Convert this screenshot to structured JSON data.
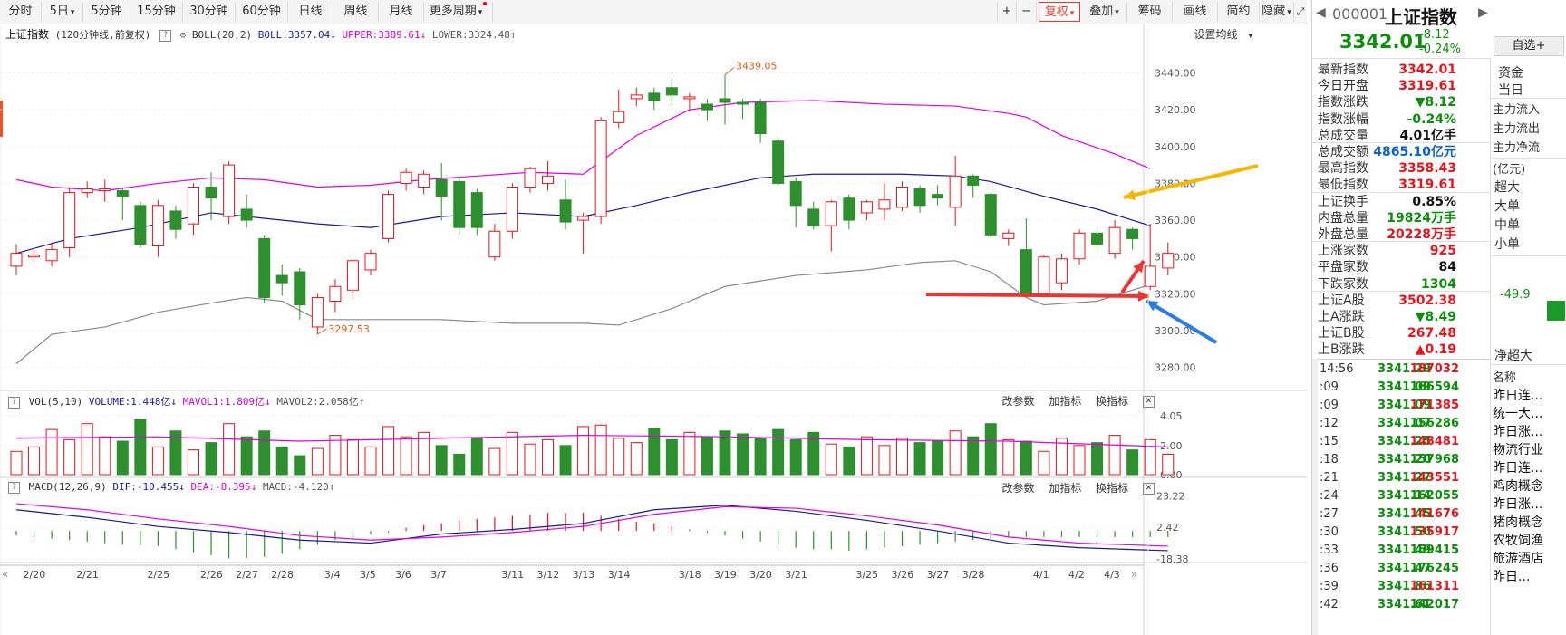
{
  "toolbar": {
    "periods": [
      "分时",
      "5日",
      "5分钟",
      "15分钟",
      "30分钟",
      "60分钟",
      "日线",
      "周线",
      "月线",
      "更多周期"
    ],
    "right_tools": [
      "+",
      "−",
      "复权",
      "叠加",
      "筹码",
      "画线",
      "简约",
      "隐藏"
    ]
  },
  "main": {
    "title": "上证指数",
    "subtitle": "(120分钟线,前复权)",
    "indicator": "BOLL(20,2)",
    "boll_label": "BOLL:3357.04",
    "upper_label": "UPPER:3389.61",
    "lower_label": "LOWER:3324.48",
    "settings": "设置均线",
    "high_mark": "3439.05",
    "low_mark": "3297.53",
    "yticks": [
      "3440.00",
      "3420.00",
      "3400.00",
      "3380.00",
      "3360.00",
      "3340.00",
      "3320.00",
      "3300.00",
      "3280.00"
    ]
  },
  "vol": {
    "indicator": "VOL(5,10)",
    "volume_label": "VOLUME:1.448亿",
    "mavol1_label": "MAVOL1:1.809亿",
    "mavol2_label": "MAVOL2:2.058亿",
    "yticks": [
      "4.05",
      "2.00",
      "0.00"
    ]
  },
  "macd": {
    "indicator": "MACD(12,26,9)",
    "dif_label": "DIF:-10.455",
    "dea_label": "DEA:-8.395",
    "macd_label": "MACD:-4.120",
    "yticks": [
      "23.22",
      "2.42",
      "-18.38"
    ]
  },
  "panel_tools": [
    "改参数",
    "加指标",
    "换指标"
  ],
  "xaxis": [
    "2/20",
    "2/21",
    "2/25",
    "2/26",
    "2/27",
    "2/28",
    "3/4",
    "3/5",
    "3/6",
    "3/7",
    "3/11",
    "3/12",
    "3/13",
    "3/14",
    "3/18",
    "3/19",
    "3/20",
    "3/21",
    "3/25",
    "3/26",
    "3/27",
    "3/28",
    "4/1",
    "4/2",
    "4/3"
  ],
  "chart_data": {
    "type": "candlestick",
    "ylim": [
      3270,
      3455
    ],
    "candles": [
      [
        3335,
        3342,
        3330,
        3347
      ],
      [
        3340,
        3341,
        3337,
        3344
      ],
      [
        3338,
        3344,
        3335,
        3348
      ],
      [
        3345,
        3375,
        3340,
        3378
      ],
      [
        3375,
        3377,
        3372,
        3381
      ],
      [
        3376,
        3377,
        3370,
        3382
      ],
      [
        3376,
        3373,
        3360,
        3377
      ],
      [
        3368,
        3347,
        3345,
        3370
      ],
      [
        3346,
        3368,
        3340,
        3371
      ],
      [
        3365,
        3355,
        3350,
        3368
      ],
      [
        3358,
        3378,
        3352,
        3380
      ],
      [
        3378,
        3372,
        3360,
        3386
      ],
      [
        3362,
        3390,
        3358,
        3392
      ],
      [
        3366,
        3360,
        3356,
        3374
      ],
      [
        3350,
        3318,
        3315,
        3352
      ],
      [
        3330,
        3326,
        3319,
        3336
      ],
      [
        3332,
        3314,
        3306,
        3334
      ],
      [
        3302,
        3318,
        3298,
        3320
      ],
      [
        3316,
        3324,
        3310,
        3328
      ],
      [
        3322,
        3338,
        3318,
        3339
      ],
      [
        3333,
        3342,
        3330,
        3344
      ],
      [
        3350,
        3374,
        3348,
        3376
      ],
      [
        3380,
        3386,
        3376,
        3388
      ],
      [
        3378,
        3385,
        3374,
        3387
      ],
      [
        3382,
        3373,
        3360,
        3391
      ],
      [
        3381,
        3356,
        3352,
        3383
      ],
      [
        3375,
        3356,
        3352,
        3377
      ],
      [
        3340,
        3354,
        3338,
        3358
      ],
      [
        3354,
        3378,
        3350,
        3380
      ],
      [
        3378,
        3388,
        3375,
        3389
      ],
      [
        3380,
        3384,
        3376,
        3392
      ],
      [
        3371,
        3359,
        3355,
        3382
      ],
      [
        3360,
        3362,
        3342,
        3364
      ],
      [
        3362,
        3414,
        3358,
        3416
      ],
      [
        3413,
        3419,
        3410,
        3431
      ],
      [
        3426,
        3428,
        3422,
        3432
      ],
      [
        3429,
        3425,
        3420,
        3432
      ],
      [
        3432,
        3428,
        3422,
        3437
      ],
      [
        3426,
        3427,
        3419,
        3429
      ],
      [
        3423,
        3420,
        3414,
        3426
      ],
      [
        3426,
        3424,
        3412,
        3439
      ],
      [
        3424,
        3423,
        3415,
        3426
      ],
      [
        3424,
        3407,
        3402,
        3426
      ],
      [
        3403,
        3380,
        3379,
        3405
      ],
      [
        3381,
        3368,
        3356,
        3383
      ],
      [
        3366,
        3357,
        3355,
        3370
      ],
      [
        3357,
        3370,
        3343,
        3371
      ],
      [
        3372,
        3360,
        3355,
        3374
      ],
      [
        3364,
        3370,
        3360,
        3371
      ],
      [
        3366,
        3371,
        3360,
        3380
      ],
      [
        3367,
        3378,
        3365,
        3381
      ],
      [
        3377,
        3368,
        3364,
        3379
      ],
      [
        3374,
        3372,
        3368,
        3379
      ],
      [
        3367,
        3384,
        3357,
        3395
      ],
      [
        3384,
        3379,
        3372,
        3385
      ],
      [
        3374,
        3352,
        3350,
        3375
      ],
      [
        3350,
        3353,
        3346,
        3355
      ],
      [
        3344,
        3320,
        3318,
        3361
      ],
      [
        3320,
        3340,
        3318,
        3341
      ],
      [
        3326,
        3339,
        3322,
        3342
      ],
      [
        3339,
        3353,
        3336,
        3355
      ],
      [
        3353,
        3347,
        3342,
        3355
      ],
      [
        3342,
        3356,
        3339,
        3360
      ],
      [
        3355,
        3350,
        3344,
        3356
      ],
      [
        3324,
        3335,
        3322,
        3358
      ],
      [
        3334,
        3342,
        3330,
        3348
      ]
    ],
    "boll_upper": [
      [
        0,
        3382
      ],
      [
        2,
        3378
      ],
      [
        5,
        3376
      ],
      [
        8,
        3380
      ],
      [
        11,
        3383
      ],
      [
        14,
        3382
      ],
      [
        17,
        3378
      ],
      [
        20,
        3379
      ],
      [
        23,
        3382
      ],
      [
        26,
        3384
      ],
      [
        29,
        3386
      ],
      [
        32,
        3385
      ],
      [
        33,
        3392
      ],
      [
        35,
        3406
      ],
      [
        38,
        3420
      ],
      [
        41,
        3424
      ],
      [
        45,
        3425
      ],
      [
        49,
        3423
      ],
      [
        53,
        3422
      ],
      [
        56,
        3418
      ],
      [
        57,
        3416
      ],
      [
        59,
        3406
      ],
      [
        62,
        3396
      ],
      [
        64,
        3388
      ]
    ],
    "boll_mid": [
      [
        0,
        3342
      ],
      [
        3,
        3350
      ],
      [
        7,
        3356
      ],
      [
        11,
        3364
      ],
      [
        13,
        3362
      ],
      [
        17,
        3358
      ],
      [
        20,
        3356
      ],
      [
        24,
        3362
      ],
      [
        28,
        3364
      ],
      [
        32,
        3362
      ],
      [
        35,
        3368
      ],
      [
        38,
        3375
      ],
      [
        42,
        3383
      ],
      [
        45,
        3385
      ],
      [
        50,
        3385
      ],
      [
        53,
        3384
      ],
      [
        55,
        3381
      ],
      [
        58,
        3373
      ],
      [
        61,
        3366
      ],
      [
        64,
        3357
      ]
    ],
    "boll_lower": [
      [
        0,
        3282
      ],
      [
        2,
        3298
      ],
      [
        5,
        3302
      ],
      [
        8,
        3310
      ],
      [
        11,
        3315
      ],
      [
        13,
        3318
      ],
      [
        15,
        3316
      ],
      [
        17,
        3306
      ],
      [
        20,
        3306
      ],
      [
        24,
        3306
      ],
      [
        28,
        3304
      ],
      [
        32,
        3304
      ],
      [
        34,
        3303
      ],
      [
        37,
        3312
      ],
      [
        40,
        3324
      ],
      [
        44,
        3330
      ],
      [
        48,
        3333
      ],
      [
        51,
        3337
      ],
      [
        53,
        3338
      ],
      [
        55,
        3332
      ],
      [
        57,
        3318
      ],
      [
        58,
        3314
      ],
      [
        61,
        3316
      ],
      [
        64,
        3325
      ]
    ],
    "volume": [
      1.6,
      1.9,
      3.1,
      2.4,
      3.5,
      2.6,
      2.3,
      3.8,
      1.9,
      3.0,
      1.7,
      2.2,
      3.5,
      2.6,
      3.0,
      1.9,
      1.3,
      1.8,
      2.7,
      2.4,
      1.9,
      3.3,
      2.6,
      2.9,
      2.0,
      1.4,
      2.5,
      1.8,
      2.9,
      2.1,
      2.4,
      2.0,
      3.3,
      3.4,
      2.5,
      2.2,
      3.2,
      2.4,
      2.9,
      2.6,
      3.0,
      2.8,
      2.5,
      3.1,
      2.4,
      2.9,
      2.1,
      1.9,
      2.6,
      2.0,
      2.5,
      2.2,
      2.3,
      3.0,
      2.6,
      3.5,
      2.4,
      2.3,
      1.6,
      2.5,
      2.0,
      2.2,
      2.7,
      1.7,
      2.4,
      1.4
    ],
    "mavol": [
      [
        0,
        2.5
      ],
      [
        8,
        2.6
      ],
      [
        16,
        2.3
      ],
      [
        24,
        2.5
      ],
      [
        32,
        2.7
      ],
      [
        40,
        2.6
      ],
      [
        48,
        2.4
      ],
      [
        56,
        2.3
      ],
      [
        65,
        1.9
      ]
    ],
    "macd_dif": [
      [
        0,
        14
      ],
      [
        4,
        9
      ],
      [
        8,
        3
      ],
      [
        12,
        -1
      ],
      [
        16,
        -6
      ],
      [
        20,
        -8
      ],
      [
        24,
        -2
      ],
      [
        28,
        1
      ],
      [
        32,
        5
      ],
      [
        36,
        14
      ],
      [
        40,
        17
      ],
      [
        44,
        13
      ],
      [
        48,
        7
      ],
      [
        52,
        0
      ],
      [
        56,
        -8
      ],
      [
        60,
        -11
      ],
      [
        65,
        -13
      ]
    ],
    "macd_dea": [
      [
        0,
        18
      ],
      [
        4,
        14
      ],
      [
        8,
        8
      ],
      [
        12,
        3
      ],
      [
        16,
        -3
      ],
      [
        20,
        -6
      ],
      [
        24,
        -4
      ],
      [
        28,
        -1
      ],
      [
        32,
        3
      ],
      [
        36,
        11
      ],
      [
        40,
        16
      ],
      [
        44,
        15
      ],
      [
        48,
        10
      ],
      [
        52,
        4
      ],
      [
        56,
        -4
      ],
      [
        60,
        -8
      ],
      [
        65,
        -10
      ]
    ],
    "macd_bars": [
      -3,
      -4,
      -5,
      -6,
      -7,
      -8,
      -9,
      -9,
      -10,
      -12,
      -14,
      -16,
      -18,
      -18,
      -17,
      -15,
      -12,
      -9,
      -6,
      -4,
      -2,
      -1,
      2,
      4,
      5,
      7,
      8,
      9,
      10,
      11,
      12,
      12,
      12,
      10,
      8,
      6,
      5,
      3,
      1,
      -1,
      -3,
      -5,
      -7,
      -9,
      -11,
      -12,
      -12,
      -13,
      -12,
      -11,
      -10,
      -9,
      -8,
      -7,
      -6,
      -5,
      -4,
      -4,
      -4,
      -4,
      -4,
      -4,
      -4,
      -4,
      -4,
      -4
    ]
  },
  "quote": {
    "code": "000001",
    "name": "上证指数",
    "price": "3342.01",
    "change": "-8.12",
    "pct": "-0.24%",
    "fav": "自选+"
  },
  "stats": [
    {
      "label": "最新指数",
      "value": "3342.01",
      "color": "up"
    },
    {
      "label": "今日开盘",
      "value": "3319.61",
      "color": "up"
    },
    {
      "label": "指数涨跌",
      "value": "▼8.12",
      "color": "dn"
    },
    {
      "label": "指数涨幅",
      "value": "-0.24%",
      "color": "dn"
    },
    {
      "label": "总成交量",
      "value": "4.01亿手",
      "color": "blk"
    },
    {
      "label": "总成交额",
      "value": "4865.10亿元",
      "color": "blu"
    },
    {
      "label": "最高指数",
      "value": "3358.43",
      "color": "up"
    },
    {
      "label": "最低指数",
      "value": "3319.61",
      "color": "up"
    },
    {
      "label": "上证换手",
      "value": "0.85%",
      "color": "blk"
    },
    {
      "label": "内盘总量",
      "value": "19824万手",
      "color": "dn"
    },
    {
      "label": "外盘总量",
      "value": "20228万手",
      "color": "up"
    },
    {
      "label": "上涨家数",
      "value": "925",
      "color": "up"
    },
    {
      "label": "平盘家数",
      "value": "84",
      "color": "blk"
    },
    {
      "label": "下跌家数",
      "value": "1304",
      "color": "dn"
    },
    {
      "label": "上证A股",
      "value": "3502.38",
      "color": "up"
    },
    {
      "label": "上A涨跌",
      "value": "▼8.49",
      "color": "dn"
    },
    {
      "label": "上证B股",
      "value": "267.48",
      "color": "up"
    },
    {
      "label": "上B涨跌",
      "value": "▲0.19",
      "color": "up"
    }
  ],
  "ticks": [
    {
      "time": "14:56",
      "price": "3341.29",
      "vol": "187032",
      "c": "up"
    },
    {
      "time": ":09",
      "price": "3341.09",
      "vol": "166594",
      "c": "dn"
    },
    {
      "time": ":09",
      "price": "3341.09",
      "vol": "171385",
      "c": "up"
    },
    {
      "time": ":12",
      "price": "3341.07",
      "vol": "156286",
      "c": "dn"
    },
    {
      "time": ":15",
      "price": "3341.25",
      "vol": "148481",
      "c": "up"
    },
    {
      "time": ":18",
      "price": "3341.20",
      "vol": "157968",
      "c": "dn"
    },
    {
      "time": ":21",
      "price": "3341.27",
      "vol": "143551",
      "c": "up"
    },
    {
      "time": ":24",
      "price": "3341.14",
      "vol": "162055",
      "c": "dn"
    },
    {
      "time": ":27",
      "price": "3341.45",
      "vol": "141676",
      "c": "up"
    },
    {
      "time": ":30",
      "price": "3341.50",
      "vol": "135917",
      "c": "up"
    },
    {
      "time": ":33",
      "price": "3341.49",
      "vol": "159415",
      "c": "dn"
    },
    {
      "time": ":36",
      "price": "3341.47",
      "vol": "176245",
      "c": "dn"
    },
    {
      "time": ":39",
      "price": "3341.86",
      "vol": "161311",
      "c": "up"
    },
    {
      "time": ":42",
      "price": "3341.61",
      "vol": "142017",
      "c": "dn"
    }
  ],
  "side": {
    "tabs": [
      "资金",
      "当日"
    ],
    "flows": [
      "主力流入",
      "主力流出",
      "主力净流"
    ],
    "unit": "(亿元)",
    "sizes": [
      "超大",
      "大单",
      "中单",
      "小单"
    ],
    "net_value": "-49.9",
    "net_label": "净超大",
    "name_header": "名称",
    "names": [
      "昨日连...",
      "统一大...",
      "昨日涨...",
      "物流行业",
      "昨日连...",
      "鸡肉概念",
      "昨日涨...",
      "猪肉概念",
      "农牧饲渔",
      "旅游酒店",
      "昨日..."
    ]
  }
}
